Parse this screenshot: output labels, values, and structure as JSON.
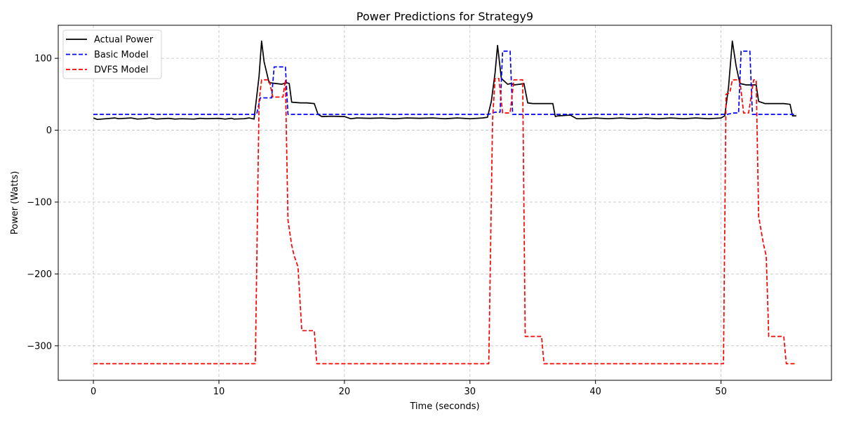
{
  "chart_data": {
    "type": "line",
    "title": "Power Predictions for Strategy9",
    "xlabel": "Time (seconds)",
    "ylabel": "Power (Watts)",
    "xlim": [
      -2.8,
      58.8
    ],
    "ylim": [
      -348,
      146
    ],
    "xticks": [
      0,
      10,
      20,
      30,
      40,
      50
    ],
    "yticks": [
      -300,
      -200,
      -100,
      0,
      100
    ],
    "ytick_labels": [
      "−300",
      "−200",
      "−100",
      "0",
      "100"
    ],
    "grid": true,
    "legend_position": "top-left",
    "series": [
      {
        "name": "Actual Power",
        "color": "#000000",
        "dash": "solid",
        "x": [
          0,
          0.3,
          1,
          1.7,
          2,
          3,
          3.5,
          4,
          4.5,
          5,
          6,
          6.5,
          7,
          8,
          8.5,
          9,
          10,
          10.5,
          11,
          11.2,
          12,
          12.4,
          12.8,
          13.2,
          13.4,
          13.6,
          14,
          15,
          15.4,
          15.6,
          15.8,
          16.5,
          17,
          17.6,
          17.9,
          18.2,
          19,
          20,
          20.5,
          21,
          22,
          23,
          24,
          25,
          26,
          27,
          28,
          29,
          30,
          31,
          31.4,
          31.7,
          32,
          32.2,
          32.5,
          33,
          33.3,
          33.5,
          34,
          34.3,
          34.6,
          35,
          36,
          36.6,
          36.8,
          37,
          38,
          38.5,
          39,
          40,
          41,
          42,
          43,
          44,
          45,
          46,
          47,
          48,
          49,
          50,
          50.3,
          50.6,
          50.9,
          51.2,
          51.5,
          52,
          52.6,
          52.8,
          53,
          53.5,
          54,
          55,
          55.5,
          55.7,
          56
        ],
        "y": [
          17,
          15,
          16,
          17,
          16,
          17,
          15.5,
          16,
          17,
          15.5,
          16.5,
          15.5,
          16,
          15.5,
          16.5,
          16,
          16.5,
          15.5,
          16.5,
          15.5,
          16,
          17,
          15.5,
          75,
          124,
          95,
          66,
          64,
          66,
          65,
          39,
          38,
          38,
          37,
          22,
          19,
          19.5,
          19,
          16,
          17,
          16.5,
          17,
          16,
          17,
          16.5,
          17,
          16,
          17,
          16,
          17,
          18,
          40,
          80,
          118,
          72,
          64,
          65,
          63,
          64,
          65,
          38,
          37,
          37,
          37,
          19,
          20,
          21,
          16,
          16,
          17,
          16,
          17,
          16,
          17,
          16,
          17,
          16,
          17,
          16,
          17,
          20,
          60,
          124,
          90,
          65,
          63,
          63,
          63,
          40,
          37,
          37,
          37,
          36,
          20,
          20
        ]
      },
      {
        "name": "Basic Model",
        "color": "#0000ff",
        "dash": "dashed",
        "x": [
          0,
          13,
          13.3,
          14.2,
          14.4,
          15.3,
          15.5,
          31.5,
          32,
          32.4,
          32.6,
          33.2,
          33.4,
          50.5,
          51,
          51.4,
          51.6,
          52.3,
          52.5,
          56
        ],
        "y": [
          22,
          22,
          45,
          45,
          88,
          88,
          22,
          22,
          25,
          25,
          110,
          110,
          22,
          22,
          24,
          24,
          110,
          110,
          22,
          22
        ],
        "step": true
      },
      {
        "name": "DVFS Model",
        "color": "#ff0000",
        "dash": "dashed",
        "x": [
          0,
          12.9,
          13.2,
          13.4,
          13.6,
          14,
          14.3,
          15.1,
          15.3,
          15.5,
          15.8,
          16,
          16.3,
          16.6,
          17.6,
          17.8,
          31.5,
          31.8,
          32,
          32.3,
          32.6,
          32.9,
          33.2,
          33.5,
          34,
          34.2,
          34.4,
          35.7,
          35.9,
          36.1,
          50.2,
          50.4,
          50.7,
          50.9,
          51.2,
          51.5,
          51.8,
          52.2,
          52.6,
          52.8,
          53,
          53.4,
          53.6,
          53.8,
          55,
          55.2,
          56
        ],
        "y": [
          -325,
          -325,
          40,
          70,
          70,
          70,
          46,
          46,
          70,
          -125,
          -160,
          -175,
          -190,
          -279,
          -279,
          -325,
          -325,
          15,
          72,
          72,
          24,
          24,
          24,
          70,
          70,
          70,
          -287,
          -287,
          -325,
          -325,
          -325,
          50,
          52,
          70,
          70,
          70,
          24,
          24,
          70,
          70,
          -120,
          -160,
          -175,
          -287,
          -287,
          -325,
          -325
        ]
      }
    ]
  }
}
